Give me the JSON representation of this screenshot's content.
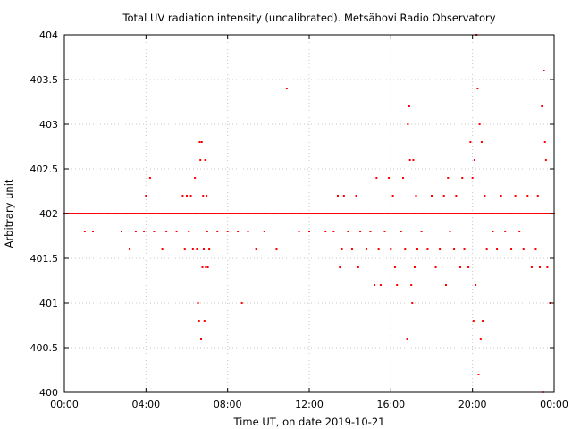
{
  "chart_data": {
    "type": "scatter",
    "title": "Total UV radiation intensity (uncalibrated). Metsähovi Radio Observatory",
    "xlabel": "Time UT, on date 2019-10-21",
    "ylabel": "Arbitrary unit",
    "grid": true,
    "legend": "none",
    "marker_color": "#ff0000",
    "xlim": [
      "00:00",
      "24:00"
    ],
    "ylim": [
      400,
      404
    ],
    "x_ticks": [
      "00:00",
      "04:00",
      "08:00",
      "12:00",
      "16:00",
      "20:00",
      "00:00"
    ],
    "y_ticks": [
      "400",
      "400.5",
      "401",
      "401.5",
      "402",
      "402.5",
      "403",
      "403.5",
      "404"
    ],
    "series": [
      {
        "baseline": {
          "y": 402,
          "from": "00:00",
          "to": "24:00",
          "step_minutes": 5
        },
        "points": [
          [
            "01:00",
            401.8
          ],
          [
            "01:24",
            401.8
          ],
          [
            "02:48",
            401.8
          ],
          [
            "03:12",
            401.6
          ],
          [
            "03:30",
            401.8
          ],
          [
            "03:54",
            401.8
          ],
          [
            "04:00",
            402.2
          ],
          [
            "04:12",
            402.4
          ],
          [
            "04:24",
            401.8
          ],
          [
            "04:48",
            401.6
          ],
          [
            "05:00",
            401.8
          ],
          [
            "05:30",
            401.8
          ],
          [
            "05:48",
            402.2
          ],
          [
            "05:54",
            401.6
          ],
          [
            "06:00",
            402.2
          ],
          [
            "06:06",
            401.8
          ],
          [
            "06:12",
            402.2
          ],
          [
            "06:18",
            401.6
          ],
          [
            "06:24",
            402.4
          ],
          [
            "06:30",
            401.6
          ],
          [
            "06:33",
            401.0
          ],
          [
            "06:36",
            400.8
          ],
          [
            "06:38",
            402.8
          ],
          [
            "06:40",
            402.6
          ],
          [
            "06:42",
            400.6
          ],
          [
            "06:44",
            402.8
          ],
          [
            "06:46",
            401.4
          ],
          [
            "06:48",
            402.2
          ],
          [
            "06:50",
            401.6
          ],
          [
            "06:52",
            400.8
          ],
          [
            "06:54",
            402.6
          ],
          [
            "06:56",
            401.4
          ],
          [
            "06:58",
            402.2
          ],
          [
            "07:00",
            401.8
          ],
          [
            "07:02",
            401.4
          ],
          [
            "07:06",
            401.6
          ],
          [
            "07:30",
            401.8
          ],
          [
            "08:00",
            401.8
          ],
          [
            "08:30",
            401.8
          ],
          [
            "08:42",
            401.0
          ],
          [
            "09:00",
            401.8
          ],
          [
            "09:24",
            401.6
          ],
          [
            "09:48",
            401.8
          ],
          [
            "10:24",
            401.6
          ],
          [
            "10:54",
            403.4
          ],
          [
            "11:30",
            401.8
          ],
          [
            "12:00",
            401.8
          ],
          [
            "12:48",
            401.8
          ],
          [
            "13:12",
            401.8
          ],
          [
            "13:24",
            402.2
          ],
          [
            "13:30",
            401.4
          ],
          [
            "13:36",
            401.6
          ],
          [
            "13:42",
            402.2
          ],
          [
            "13:54",
            401.8
          ],
          [
            "14:06",
            401.6
          ],
          [
            "14:18",
            402.2
          ],
          [
            "14:24",
            401.4
          ],
          [
            "14:30",
            401.8
          ],
          [
            "14:48",
            401.6
          ],
          [
            "15:00",
            401.8
          ],
          [
            "15:12",
            401.2
          ],
          [
            "15:18",
            402.4
          ],
          [
            "15:24",
            401.6
          ],
          [
            "15:30",
            401.2
          ],
          [
            "15:42",
            401.8
          ],
          [
            "15:54",
            402.4
          ],
          [
            "16:00",
            401.6
          ],
          [
            "16:06",
            402.2
          ],
          [
            "16:12",
            401.4
          ],
          [
            "16:18",
            401.2
          ],
          [
            "16:30",
            401.8
          ],
          [
            "16:36",
            402.4
          ],
          [
            "16:42",
            401.6
          ],
          [
            "16:48",
            400.6
          ],
          [
            "16:50",
            403.0
          ],
          [
            "16:54",
            403.2
          ],
          [
            "16:56",
            402.6
          ],
          [
            "17:00",
            401.2
          ],
          [
            "17:03",
            401.0
          ],
          [
            "17:06",
            402.6
          ],
          [
            "17:10",
            401.4
          ],
          [
            "17:14",
            402.2
          ],
          [
            "17:18",
            401.6
          ],
          [
            "17:30",
            401.8
          ],
          [
            "17:48",
            401.6
          ],
          [
            "18:00",
            402.2
          ],
          [
            "18:12",
            401.4
          ],
          [
            "18:24",
            401.6
          ],
          [
            "18:36",
            402.2
          ],
          [
            "18:42",
            401.2
          ],
          [
            "18:48",
            402.4
          ],
          [
            "18:54",
            401.8
          ],
          [
            "19:06",
            401.6
          ],
          [
            "19:12",
            402.2
          ],
          [
            "19:24",
            401.4
          ],
          [
            "19:30",
            402.4
          ],
          [
            "19:36",
            401.6
          ],
          [
            "19:48",
            401.4
          ],
          [
            "19:54",
            402.8
          ],
          [
            "20:00",
            402.4
          ],
          [
            "20:03",
            400.8
          ],
          [
            "20:06",
            402.6
          ],
          [
            "20:09",
            401.2
          ],
          [
            "20:12",
            404.0
          ],
          [
            "20:15",
            403.4
          ],
          [
            "20:18",
            400.2
          ],
          [
            "20:21",
            403.0
          ],
          [
            "20:24",
            400.6
          ],
          [
            "20:27",
            402.8
          ],
          [
            "20:30",
            400.8
          ],
          [
            "20:36",
            402.2
          ],
          [
            "20:42",
            401.6
          ],
          [
            "21:00",
            401.8
          ],
          [
            "21:12",
            401.6
          ],
          [
            "21:24",
            402.2
          ],
          [
            "21:36",
            401.8
          ],
          [
            "21:54",
            401.6
          ],
          [
            "22:06",
            402.2
          ],
          [
            "22:18",
            401.8
          ],
          [
            "22:30",
            401.6
          ],
          [
            "22:42",
            402.2
          ],
          [
            "22:54",
            401.4
          ],
          [
            "23:06",
            401.6
          ],
          [
            "23:12",
            402.2
          ],
          [
            "23:18",
            401.4
          ],
          [
            "23:24",
            403.2
          ],
          [
            "23:27",
            400.0
          ],
          [
            "23:30",
            403.6
          ],
          [
            "23:33",
            402.8
          ],
          [
            "23:36",
            402.6
          ],
          [
            "23:40",
            401.4
          ],
          [
            "23:48",
            401.0
          ]
        ]
      }
    ]
  }
}
